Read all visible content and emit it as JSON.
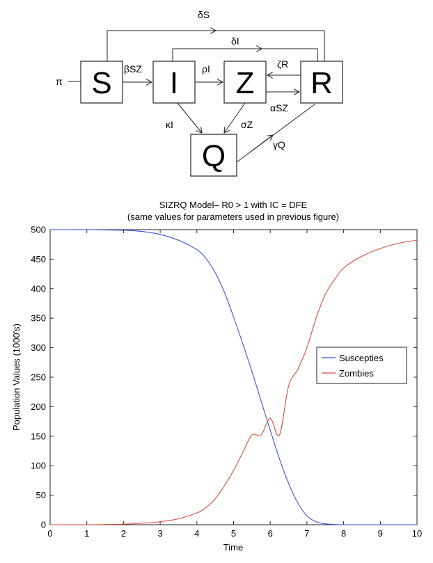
{
  "diagram": {
    "nodes": [
      {
        "id": "S",
        "label": "S"
      },
      {
        "id": "I",
        "label": "I"
      },
      {
        "id": "Z",
        "label": "Z"
      },
      {
        "id": "R",
        "label": "R"
      },
      {
        "id": "Q",
        "label": "Q"
      }
    ],
    "rates": {
      "pi": "π",
      "beta_sz": "βSZ",
      "rho_i": "ρI",
      "delta_s": "δS",
      "delta_i": "δI",
      "zeta_r": "ζR",
      "alpha_sz": "αSZ",
      "kappa_i": "κI",
      "sigma_z": "σZ",
      "gamma_q": "γQ"
    }
  },
  "chart_data": {
    "type": "line",
    "title": "SIZRQ Model– R0 > 1 with IC = DFE",
    "subtitle": "(same values for parameters used in previous figure)",
    "xlabel": "Time",
    "ylabel": "Population Values (1000's)",
    "xlim": [
      0,
      10
    ],
    "ylim": [
      0,
      500
    ],
    "xticks": [
      0,
      1,
      2,
      3,
      4,
      5,
      6,
      7,
      8,
      9,
      10
    ],
    "yticks": [
      0,
      50,
      100,
      150,
      200,
      250,
      300,
      350,
      400,
      450,
      500
    ],
    "grid": false,
    "legend_position": "right",
    "x": [
      0,
      0.5,
      1,
      1.5,
      2,
      2.5,
      3,
      3.5,
      4,
      4.25,
      4.5,
      4.75,
      5,
      5.25,
      5.5,
      5.75,
      6,
      6.25,
      6.5,
      6.75,
      7,
      7.25,
      7.5,
      7.75,
      8,
      8.5,
      9,
      9.5,
      10
    ],
    "series": [
      {
        "name": "Suscepties",
        "color": "#3a52d8",
        "values": [
          500,
          500,
          500,
          499.5,
          499,
          497,
          492,
          482,
          466,
          451,
          427,
          394,
          352,
          307,
          260,
          210,
          160,
          112,
          70,
          37,
          15,
          5,
          1.5,
          0.4,
          0,
          0,
          0,
          0,
          0
        ]
      },
      {
        "name": "Zombies",
        "color": "#d94a3c",
        "values": [
          0,
          0,
          0,
          0.3,
          1,
          2.5,
          5,
          10,
          20,
          29,
          44,
          66,
          92,
          122,
          152,
          152,
          180,
          152,
          235,
          263,
          300,
          350,
          390,
          415,
          435,
          455,
          468,
          477,
          482
        ]
      }
    ]
  }
}
